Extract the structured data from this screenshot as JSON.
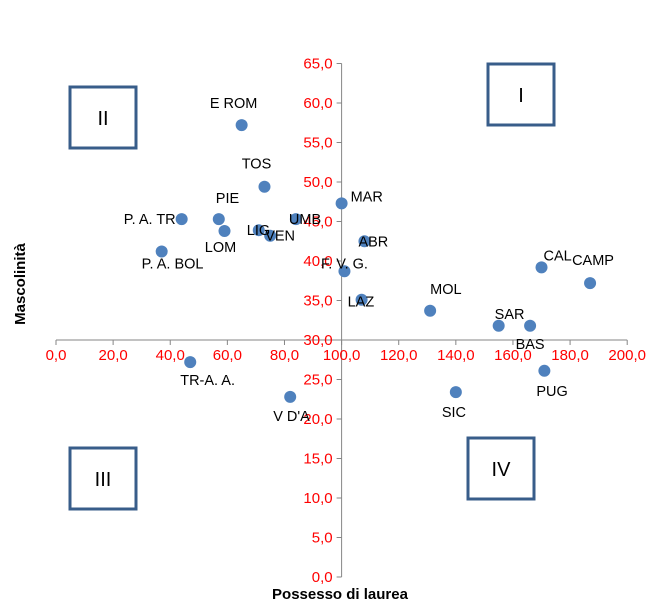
{
  "colors": {
    "point": "#4f81bd",
    "tick_text": "#ff0000",
    "axis": "#868686",
    "quadrant_box": "#385d8a",
    "label_text": "#000000"
  },
  "chart_data": {
    "type": "scatter",
    "title": "",
    "xlabel": "Possesso di laurea",
    "ylabel": "Mascolinità",
    "xlim": [
      0,
      200
    ],
    "ylim": [
      0,
      65
    ],
    "x_ticks": [
      "0,0",
      "20,0",
      "40,0",
      "60,0",
      "80,0",
      "100,0",
      "120,0",
      "140,0",
      "160,0",
      "180,0",
      "200,0"
    ],
    "y_ticks": [
      "0,0",
      "5,0",
      "10,0",
      "15,0",
      "20,0",
      "25,0",
      "30,0",
      "35,0",
      "40,0",
      "45,0",
      "50,0",
      "55,0",
      "60,0",
      "65,0"
    ],
    "axis_crossing": {
      "x": 100,
      "y": 30
    },
    "grid": false,
    "quadrants": [
      "I",
      "II",
      "III",
      "IV"
    ],
    "points": [
      {
        "label": "E ROM",
        "x": 65,
        "y": 57.2
      },
      {
        "label": "TOS",
        "x": 73,
        "y": 49.4
      },
      {
        "label": "MAR",
        "x": 100,
        "y": 47.3
      },
      {
        "label": "P. A. TR",
        "x": 44,
        "y": 45.3
      },
      {
        "label": "PIE",
        "x": 57,
        "y": 45.3
      },
      {
        "label": "UMB",
        "x": 84,
        "y": 45.3
      },
      {
        "label": "LIG",
        "x": 71,
        "y": 43.9
      },
      {
        "label": "LOM",
        "x": 59,
        "y": 43.8
      },
      {
        "label": "VEN",
        "x": 75,
        "y": 43.2
      },
      {
        "label": "ABR",
        "x": 108,
        "y": 42.5
      },
      {
        "label": "P. A. BOL",
        "x": 37,
        "y": 41.2
      },
      {
        "label": "F. V. G.",
        "x": 101,
        "y": 38.7
      },
      {
        "label": "CAL",
        "x": 170,
        "y": 39.2
      },
      {
        "label": "CAMP",
        "x": 187,
        "y": 37.2
      },
      {
        "label": "LAZ",
        "x": 107,
        "y": 35.1
      },
      {
        "label": "MOL",
        "x": 131,
        "y": 33.7
      },
      {
        "label": "SAR",
        "x": 155,
        "y": 31.8
      },
      {
        "label": "BAS",
        "x": 166,
        "y": 31.8
      },
      {
        "label": "TR-A. A.",
        "x": 47,
        "y": 27.2
      },
      {
        "label": "PUG",
        "x": 171,
        "y": 26.1
      },
      {
        "label": "SIC",
        "x": 140,
        "y": 23.4
      },
      {
        "label": "V D'A",
        "x": 82,
        "y": 22.8
      }
    ]
  }
}
